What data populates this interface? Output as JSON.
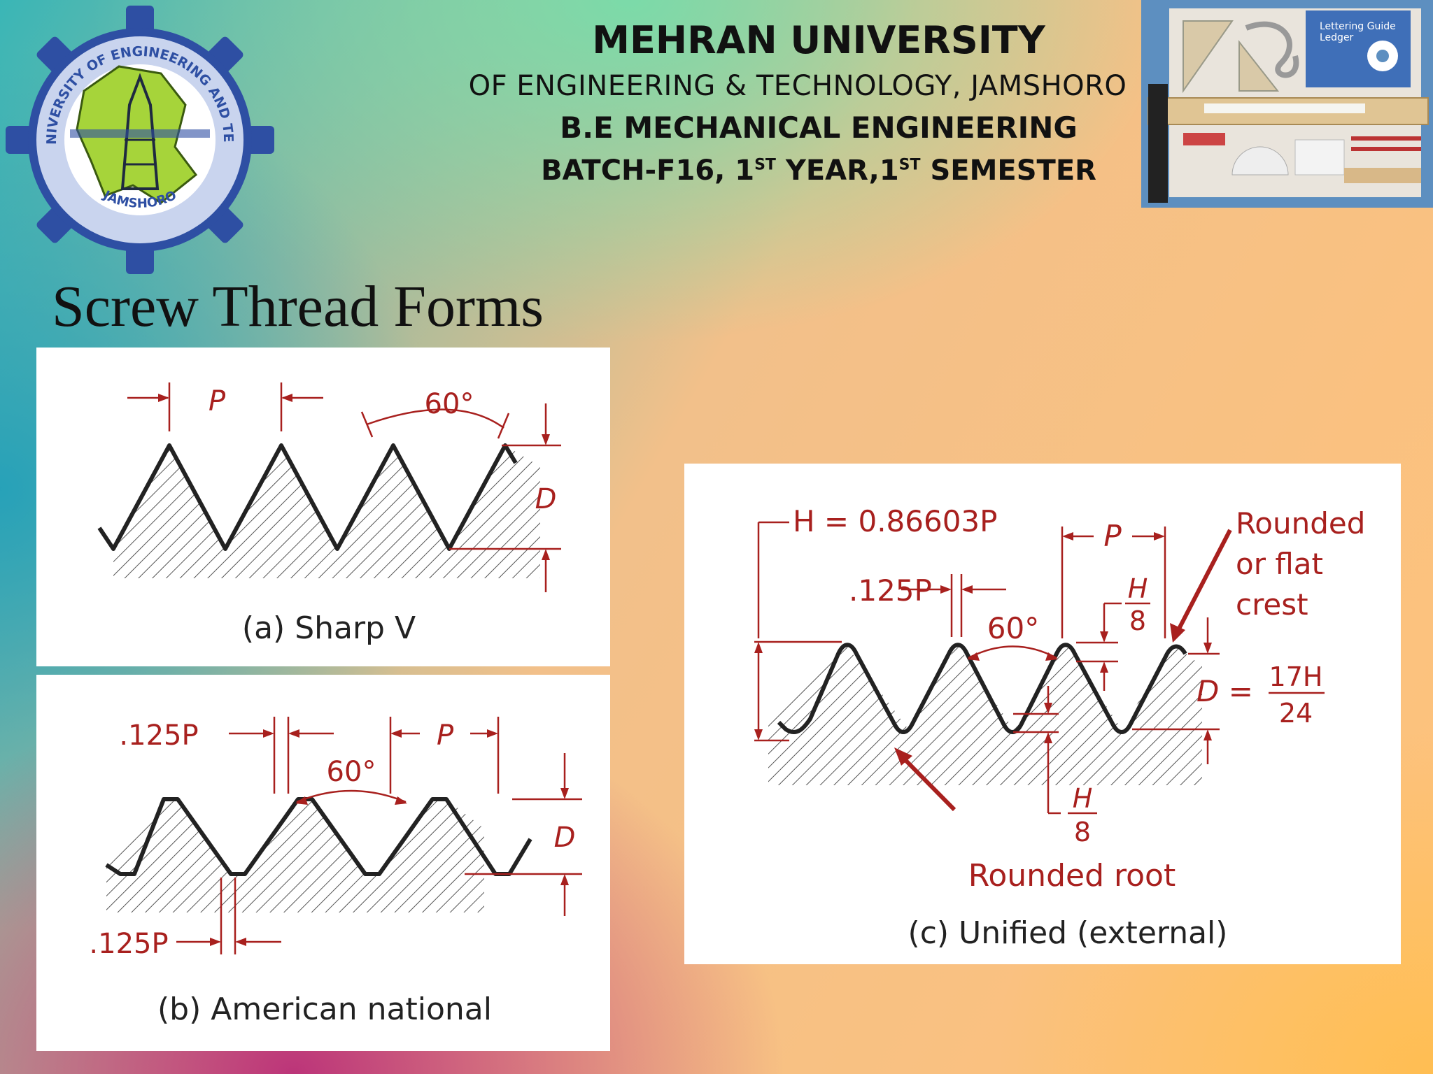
{
  "header": {
    "university": "MEHRAN UNIVERSITY",
    "subtitle": "OF ENGINEERING & TECHNOLOGY, JAMSHORO",
    "program": "B.E MECHANICAL ENGINEERING",
    "batch_part1": "BATCH-F16, 1",
    "batch_sup1": "ST",
    "batch_part2": " YEAR,1",
    "batch_sup2": "ST",
    "batch_part3": " SEMESTER"
  },
  "logo": {
    "ring_text": "MEHRAN UNIVERSITY OF ENGINEERING AND TECHNOLOGY",
    "bottom_text": "JAMSHORO",
    "icon": "university-gear-seal"
  },
  "photo": {
    "icon": "drafting-tools-kit",
    "box_label_1": "Lettering Guide",
    "box_label_2": "Ledger"
  },
  "title": "Screw Thread Forms",
  "diagram_a": {
    "pitch": "P",
    "angle": "60°",
    "depth": "D",
    "caption": "(a) Sharp V"
  },
  "diagram_b": {
    "flat_top": ".125P",
    "pitch": "P",
    "angle": "60°",
    "depth": "D",
    "flat_bottom": ".125P",
    "caption": "(b) American national"
  },
  "diagram_c": {
    "height": "H = 0.86603P",
    "pitch": "P",
    "flat": ".125P",
    "angle": "60°",
    "h_num": "H",
    "h_den": "8",
    "crest_1": "Rounded",
    "crest_2": "or flat",
    "crest_3": "crest",
    "depth_label": "D =",
    "depth_num": "17H",
    "depth_den": "24",
    "root_num": "H",
    "root_den": "8",
    "root_label": "Rounded root",
    "caption": "(c) Unified (external)"
  },
  "colors": {
    "dimension_red": "#a8201e",
    "thread_black": "#222222"
  }
}
